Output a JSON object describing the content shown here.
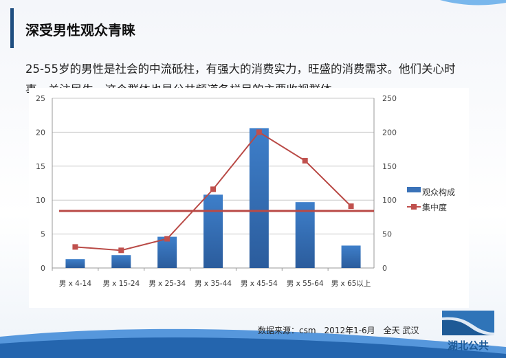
{
  "header": {
    "title": "深受男性观众青睐"
  },
  "body_text": "25-55岁的男性是社会的中流砥柱，有强大的消费实力，旺盛的消费需求。他们关心时事，关注民生，这个群体也是公共频道各栏目的主要收视群体。",
  "footer": {
    "source": "数据来源：csm　2012年1-6月　全天  武汉"
  },
  "logo": {
    "text": "湖北公共"
  },
  "colors": {
    "bar": "#3a72b8",
    "line": "#c0504d",
    "accent": "#1f4e80"
  },
  "chart_data": {
    "type": "bar+line",
    "categories": [
      "男 x 4-14",
      "男 x 15-24",
      "男 x 25-34",
      "男 x 35-44",
      "男 x 45-54",
      "男 x 55-64",
      "男 x 65以上"
    ],
    "series": [
      {
        "name": "观众构成",
        "type": "bar",
        "axis": "left",
        "values": [
          1.3,
          1.9,
          4.6,
          10.8,
          20.6,
          9.7,
          3.3
        ]
      },
      {
        "name": "集中度",
        "type": "line",
        "axis": "right",
        "values": [
          31,
          26,
          43,
          116,
          200,
          158,
          91
        ]
      }
    ],
    "reference_line": {
      "axis": "right",
      "value": 84
    },
    "y_left": {
      "range": [
        0,
        25
      ],
      "ticks": [
        "0",
        "5",
        "10",
        "15",
        "20",
        "25"
      ]
    },
    "y_right": {
      "range": [
        0,
        250
      ],
      "ticks": [
        "0",
        "50",
        "100",
        "150",
        "200",
        "250"
      ]
    },
    "grid": true,
    "legend": "right"
  }
}
